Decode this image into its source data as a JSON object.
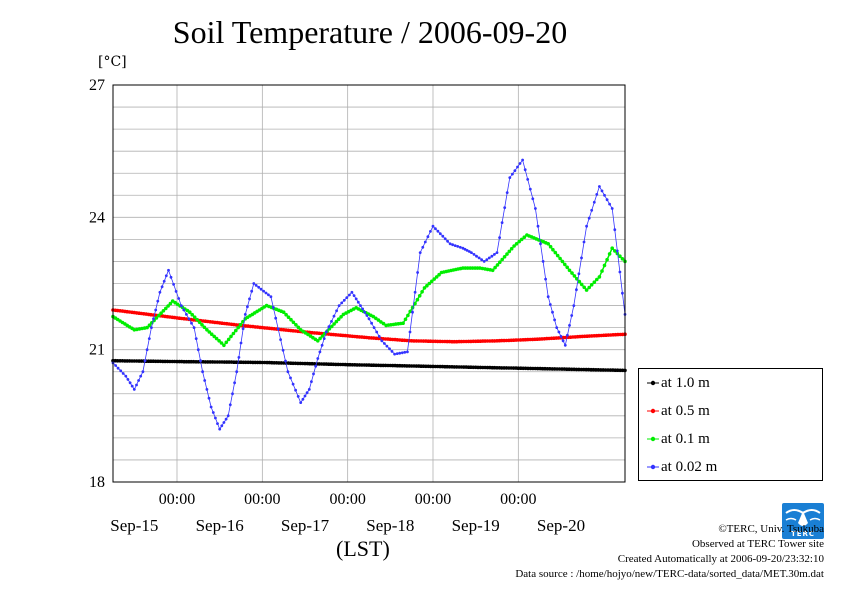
{
  "chart_data": {
    "type": "line",
    "title": "Soil Temperature / 2006-09-20",
    "yunit": "[°C]",
    "xlabel": "(LST)",
    "ylim": [
      18,
      27
    ],
    "yticks": [
      "18",
      "21",
      "24",
      "27"
    ],
    "xrange_days": [
      14.75,
      20.75
    ],
    "xtime_ticks": [
      {
        "day": 15.5,
        "label": "00:00"
      },
      {
        "day": 16.5,
        "label": "00:00"
      },
      {
        "day": 17.5,
        "label": "00:00"
      },
      {
        "day": 18.5,
        "label": "00:00"
      },
      {
        "day": 19.5,
        "label": "00:00"
      }
    ],
    "xday_labels": [
      {
        "day": 15.0,
        "label": "Sep-15"
      },
      {
        "day": 16.0,
        "label": "Sep-16"
      },
      {
        "day": 17.0,
        "label": "Sep-17"
      },
      {
        "day": 18.0,
        "label": "Sep-18"
      },
      {
        "day": 19.0,
        "label": "Sep-19"
      },
      {
        "day": 20.0,
        "label": "Sep-20"
      }
    ],
    "grid": true,
    "legend_position": "right",
    "series": [
      {
        "name": "at 1.0 m",
        "color": "#000000",
        "x": [
          14.75,
          15.5,
          16.5,
          17.5,
          18.5,
          19.5,
          20.75
        ],
        "y": [
          20.75,
          20.73,
          20.71,
          20.66,
          20.62,
          20.58,
          20.53
        ]
      },
      {
        "name": "at 0.5 m",
        "color": "#ff0000",
        "x": [
          14.75,
          15.5,
          16.25,
          17.0,
          17.75,
          18.25,
          18.75,
          19.25,
          19.75,
          20.25,
          20.75
        ],
        "y": [
          21.9,
          21.72,
          21.55,
          21.4,
          21.27,
          21.2,
          21.18,
          21.2,
          21.24,
          21.3,
          21.35
        ]
      },
      {
        "name": "at 0.1 m",
        "color": "#00ee00",
        "x": [
          14.75,
          15.0,
          15.15,
          15.45,
          15.65,
          15.85,
          16.05,
          16.3,
          16.55,
          16.75,
          16.95,
          17.15,
          17.45,
          17.6,
          17.8,
          17.95,
          18.15,
          18.4,
          18.6,
          18.85,
          19.05,
          19.2,
          19.45,
          19.6,
          19.85,
          20.1,
          20.3,
          20.45,
          20.6,
          20.75
        ],
        "y": [
          21.75,
          21.45,
          21.5,
          22.1,
          21.85,
          21.45,
          21.1,
          21.7,
          22.0,
          21.85,
          21.45,
          21.2,
          21.8,
          21.95,
          21.75,
          21.55,
          21.6,
          22.4,
          22.75,
          22.85,
          22.85,
          22.8,
          23.35,
          23.6,
          23.4,
          22.8,
          22.35,
          22.65,
          23.3,
          23.0
        ]
      },
      {
        "name": "at 0.02 m",
        "color": "#3333ff",
        "x": [
          14.75,
          14.9,
          15.0,
          15.1,
          15.2,
          15.3,
          15.4,
          15.55,
          15.7,
          15.8,
          15.9,
          16.0,
          16.1,
          16.2,
          16.3,
          16.4,
          16.6,
          16.8,
          16.95,
          17.05,
          17.15,
          17.25,
          17.4,
          17.55,
          17.65,
          17.75,
          17.9,
          18.05,
          18.2,
          18.35,
          18.5,
          18.7,
          18.85,
          18.95,
          19.1,
          19.25,
          19.4,
          19.55,
          19.7,
          19.85,
          19.95,
          20.05,
          20.15,
          20.3,
          20.45,
          20.6,
          20.75
        ],
        "y": [
          20.7,
          20.4,
          20.1,
          20.5,
          21.5,
          22.3,
          22.8,
          22.0,
          21.5,
          20.5,
          19.7,
          19.2,
          19.5,
          20.5,
          21.8,
          22.5,
          22.2,
          20.5,
          19.8,
          20.1,
          20.8,
          21.4,
          22.0,
          22.3,
          22.0,
          21.7,
          21.2,
          20.9,
          20.95,
          23.2,
          23.8,
          23.4,
          23.3,
          23.2,
          23.0,
          23.2,
          24.9,
          25.3,
          24.2,
          22.2,
          21.5,
          21.1,
          22.0,
          23.8,
          24.7,
          24.2,
          21.8
        ]
      }
    ]
  },
  "credits": {
    "copyright": "©TERC, Univ. Tsukuba",
    "observed": "Observed at TERC Tower site",
    "created": "Created Automatically at 2006-09-20/23:32:10",
    "source": "Data source : /home/hojyo/new/TERC-data/sorted_data/MET.30m.dat"
  },
  "logo": {
    "text": "TERC",
    "color": "#1a7fd4"
  }
}
